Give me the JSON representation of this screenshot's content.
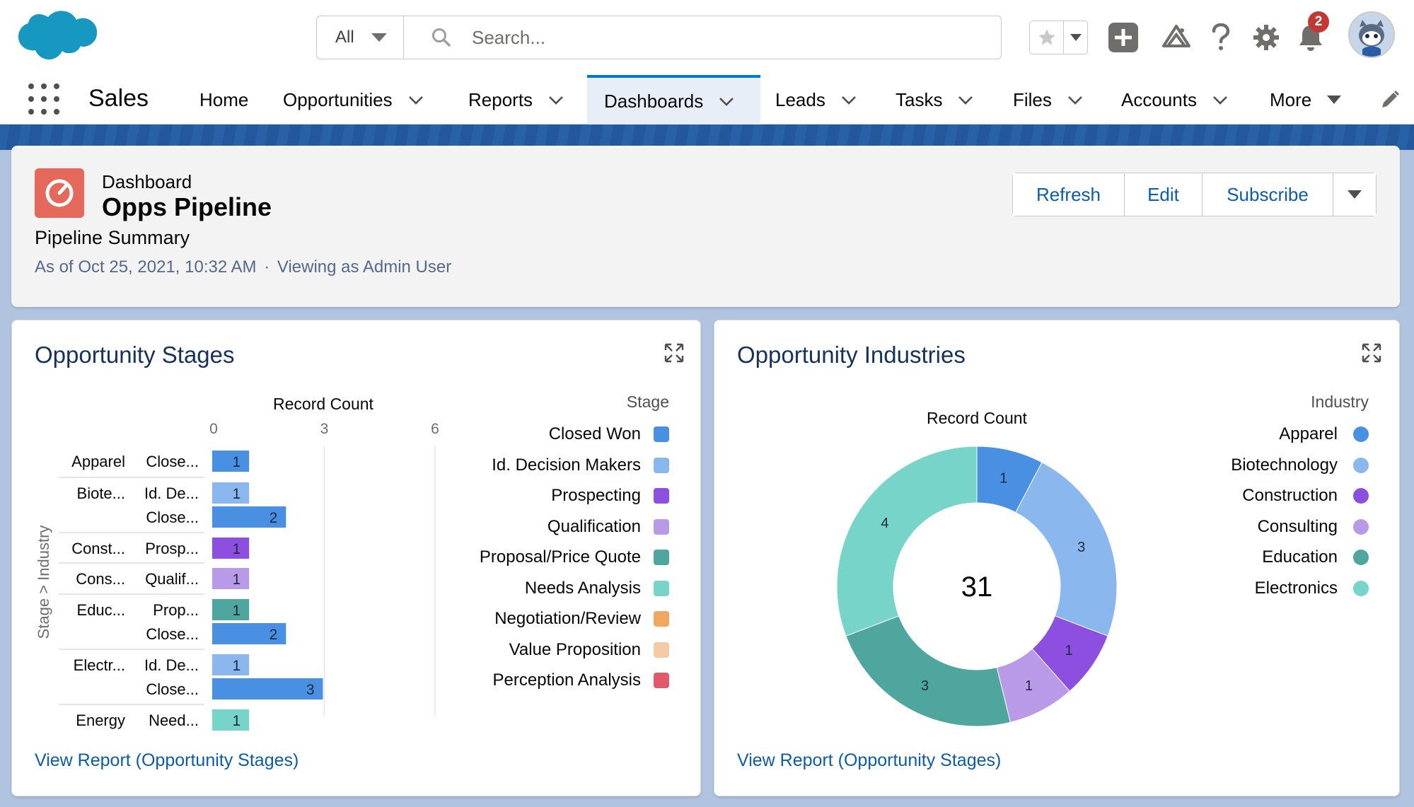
{
  "header": {
    "search_scope": "All",
    "search_placeholder": "Search...",
    "notification_count": "2"
  },
  "nav": {
    "app_name": "Sales",
    "items": [
      {
        "label": "Home"
      },
      {
        "label": "Opportunities"
      },
      {
        "label": "Reports"
      },
      {
        "label": "Dashboards"
      },
      {
        "label": "Leads"
      },
      {
        "label": "Tasks"
      },
      {
        "label": "Files"
      },
      {
        "label": "Accounts"
      },
      {
        "label": "More"
      }
    ],
    "active": "Dashboards"
  },
  "dashboard": {
    "eyebrow": "Dashboard",
    "title": "Opps Pipeline",
    "subtitle": "Pipeline Summary",
    "as_of": "As of Oct 25, 2021, 10:32 AM",
    "separator": "·",
    "viewing_as": "Viewing as Admin User",
    "buttons": {
      "refresh": "Refresh",
      "edit": "Edit",
      "subscribe": "Subscribe"
    }
  },
  "cards": {
    "stages": {
      "title": "Opportunity Stages",
      "link": "View Report (Opportunity Stages)"
    },
    "industries": {
      "title": "Opportunity Industries",
      "link": "View Report (Opportunity Stages)"
    }
  },
  "colors": {
    "Closed Won": "#4a90e2",
    "Id. Decision Makers": "#8ab8ee",
    "Prospecting": "#8c4fe0",
    "Qualification": "#b99ae8",
    "Proposal/Price Quote": "#4ea69e",
    "Needs Analysis": "#76d4c9",
    "Negotiation/Review": "#f0a860",
    "Value Proposition": "#f3cba6",
    "Perception Analysis": "#e2596a",
    "Apparel": "#4a90e2",
    "Biotechnology": "#8ab8ee",
    "Construction": "#8c4fe0",
    "Consulting": "#b99ae8",
    "Education": "#4ea69e",
    "Electronics": "#76d4c9"
  },
  "chart_data": [
    {
      "type": "bar",
      "orientation": "horizontal",
      "title": "Record Count",
      "xlabel": "Record Count",
      "ylabel": "Stage > Industry",
      "xlim": [
        0,
        6
      ],
      "xticks": [
        "0",
        "3",
        "6"
      ],
      "legend_title": "Stage",
      "legend": [
        "Closed Won",
        "Id. Decision Makers",
        "Prospecting",
        "Qualification",
        "Proposal/Price Quote",
        "Needs Analysis",
        "Negotiation/Review",
        "Value Proposition",
        "Perception Analysis"
      ],
      "rows": [
        {
          "group": "Apparel",
          "stage": "Close...",
          "stage_full": "Closed Won",
          "value": 1
        },
        {
          "group": "Biote...",
          "stage": "Id. De...",
          "stage_full": "Id. Decision Makers",
          "value": 1
        },
        {
          "group": "",
          "stage": "Close...",
          "stage_full": "Closed Won",
          "value": 2
        },
        {
          "group": "Const...",
          "stage": "Prosp...",
          "stage_full": "Prospecting",
          "value": 1
        },
        {
          "group": "Cons...",
          "stage": "Qualif...",
          "stage_full": "Qualification",
          "value": 1
        },
        {
          "group": "Educ...",
          "stage": "Prop...",
          "stage_full": "Proposal/Price Quote",
          "value": 1
        },
        {
          "group": "",
          "stage": "Close...",
          "stage_full": "Closed Won",
          "value": 2
        },
        {
          "group": "Electr...",
          "stage": "Id. De...",
          "stage_full": "Id. Decision Makers",
          "value": 1
        },
        {
          "group": "",
          "stage": "Close...",
          "stage_full": "Closed Won",
          "value": 3
        },
        {
          "group": "Energy",
          "stage": "Need...",
          "stage_full": "Needs Analysis",
          "value": 1
        }
      ]
    },
    {
      "type": "donut",
      "title": "Record Count",
      "center_total": "31",
      "legend_title": "Industry",
      "legend": [
        "Apparel",
        "Biotechnology",
        "Construction",
        "Consulting",
        "Education",
        "Electronics"
      ],
      "slices": [
        {
          "label": "Apparel",
          "value": 1
        },
        {
          "label": "Biotechnology",
          "value": 3
        },
        {
          "label": "Construction",
          "value": 1
        },
        {
          "label": "Consulting",
          "value": 1
        },
        {
          "label": "Education",
          "value": 3
        },
        {
          "label": "Electronics",
          "value": 4
        }
      ]
    }
  ]
}
